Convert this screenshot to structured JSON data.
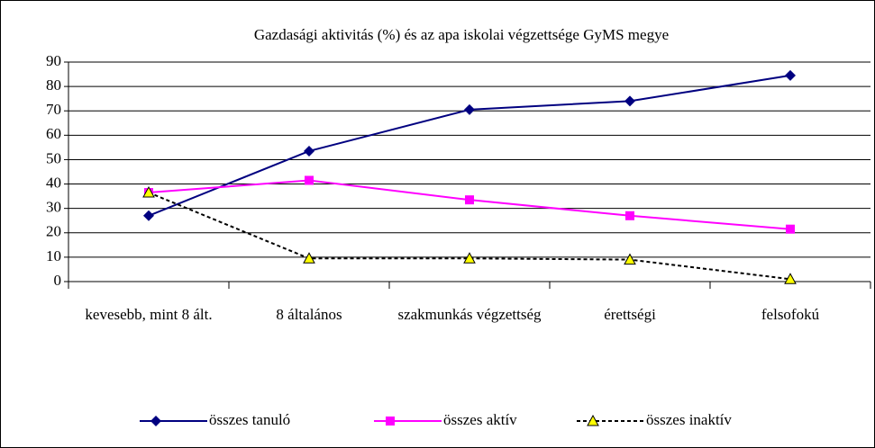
{
  "chart_data": {
    "type": "line",
    "title": "Gazdasági aktivitás (%) és az apa iskolai végzettsége GyMS megye",
    "categories": [
      "kevesebb, mint 8 ált.",
      "8 általános",
      "szakmunkás végzettség",
      "érettségi",
      "felsofokú"
    ],
    "series": [
      {
        "name": "összes tanuló",
        "color": "#000080",
        "marker": "diamond",
        "dash": "solid",
        "values": [
          27,
          53.5,
          70.5,
          74,
          84.5
        ]
      },
      {
        "name": "összes aktív",
        "color": "#ff00ff",
        "marker": "square",
        "dash": "solid",
        "values": [
          36.5,
          41.5,
          33.5,
          27,
          21.5
        ]
      },
      {
        "name": "összes inaktív",
        "color": "#000000",
        "marker": "triangle",
        "dash": "dashed",
        "values": [
          36.5,
          9.5,
          9.5,
          9,
          1
        ]
      }
    ],
    "ylim": [
      0,
      90
    ],
    "yticks": [
      0,
      10,
      20,
      30,
      40,
      50,
      60,
      70,
      80,
      90
    ],
    "grid": true,
    "legend": "bottom"
  }
}
